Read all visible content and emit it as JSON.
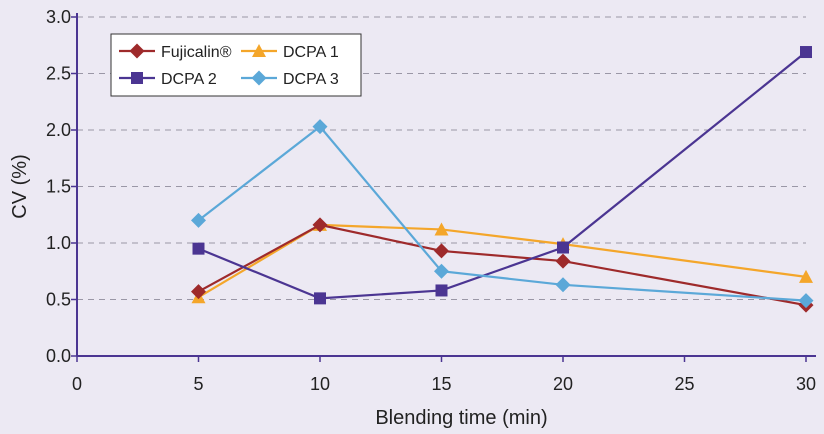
{
  "chart_data": {
    "type": "line",
    "xlabel": "Blending time (min)",
    "ylabel": "CV (%)",
    "xlim": [
      0,
      30
    ],
    "ylim": [
      0,
      3.0
    ],
    "x_ticks": [
      "0",
      "5",
      "10",
      "15",
      "20",
      "25",
      "30"
    ],
    "y_ticks": [
      "0.0",
      "0.5",
      "1.0",
      "1.5",
      "2.0",
      "2.5",
      "3.0"
    ],
    "grid": "horizontal dashed",
    "legend_position": "top-left",
    "x": [
      5,
      10,
      15,
      20,
      30
    ],
    "series": [
      {
        "name": "Fujicalin®",
        "color": "#9e2a2b",
        "marker": "diamond",
        "values": [
          0.57,
          1.16,
          0.93,
          0.84,
          0.45
        ]
      },
      {
        "name": "DCPA  2",
        "color": "#4b3592",
        "marker": "square",
        "values": [
          0.95,
          0.51,
          0.58,
          0.96,
          2.69
        ]
      },
      {
        "name": "DCPA 1",
        "color": "#f4a62a",
        "marker": "triangle",
        "values": [
          0.52,
          1.16,
          1.12,
          0.99,
          0.7
        ]
      },
      {
        "name": "DCPA 3",
        "color": "#5ba8d8",
        "marker": "diamond",
        "values": [
          1.2,
          2.03,
          0.75,
          0.63,
          0.49
        ]
      }
    ]
  }
}
